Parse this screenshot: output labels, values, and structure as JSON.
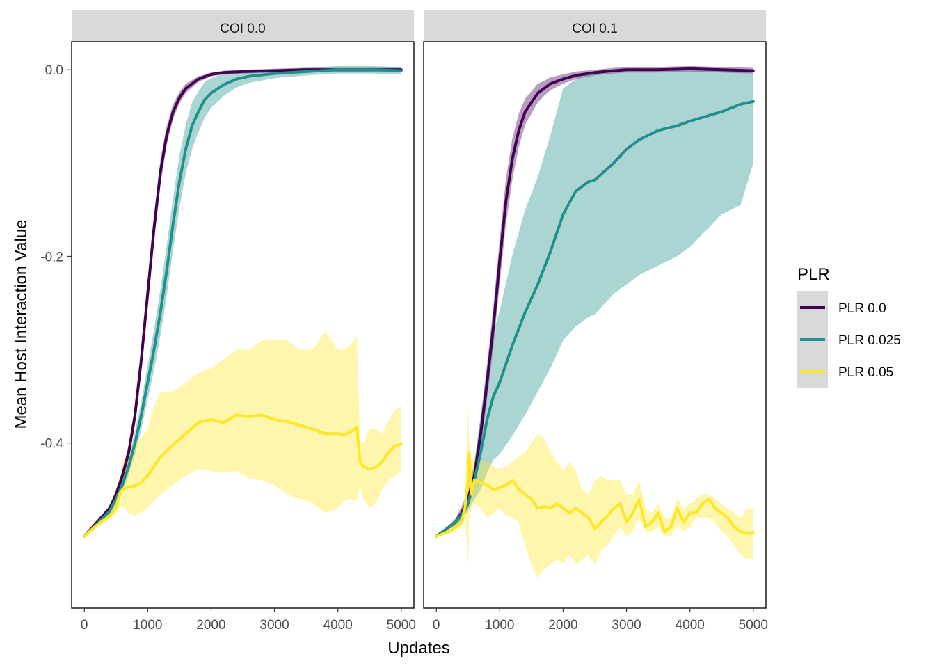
{
  "chart_data": {
    "type": "line",
    "xlabel": "Updates",
    "ylabel": "Mean Host Interaction Value",
    "xlim": [
      -200,
      5200
    ],
    "ylim": [
      -0.577,
      0.03
    ],
    "x_ticks": [
      0,
      1000,
      2000,
      3000,
      4000,
      5000
    ],
    "x_tick_labels": [
      "0",
      "1000",
      "2000",
      "3000",
      "4000",
      "5000"
    ],
    "y_ticks": [
      0.0,
      -0.2,
      -0.4
    ],
    "y_tick_labels": [
      "0.0",
      "-0.2",
      "-0.4"
    ],
    "legend": {
      "title": "PLR",
      "position": "right",
      "entries": [
        "PLR 0.0",
        "PLR 0.025",
        "PLR 0.05"
      ]
    },
    "colors": {
      "PLR 0.0": "#440154",
      "PLR 0.025": "#21908C",
      "PLR 0.05": "#FDE725"
    },
    "grid": false,
    "panels": [
      {
        "strip": "COI 0.0",
        "series": [
          {
            "name": "PLR 0.0",
            "x": [
              0,
              200,
              400,
              500,
              600,
              700,
              800,
              900,
              1000,
              1100,
              1200,
              1300,
              1400,
              1500,
              1600,
              1700,
              1800,
              2000,
              2200,
              2500,
              3000,
              3500,
              4000,
              4500,
              5000
            ],
            "y": [
              -0.5,
              -0.485,
              -0.47,
              -0.455,
              -0.435,
              -0.41,
              -0.37,
              -0.31,
              -0.24,
              -0.17,
              -0.11,
              -0.07,
              -0.045,
              -0.03,
              -0.02,
              -0.015,
              -0.01,
              -0.005,
              -0.003,
              -0.002,
              -0.001,
              0.0,
              0.0,
              0.0,
              0.0
            ],
            "lower": [
              -0.5,
              -0.487,
              -0.473,
              -0.459,
              -0.441,
              -0.418,
              -0.38,
              -0.322,
              -0.254,
              -0.184,
              -0.124,
              -0.08,
              -0.053,
              -0.036,
              -0.025,
              -0.019,
              -0.013,
              -0.007,
              -0.005,
              -0.004,
              -0.003,
              -0.002,
              -0.002,
              -0.002,
              -0.002
            ],
            "upper": [
              -0.5,
              -0.483,
              -0.467,
              -0.451,
              -0.429,
              -0.402,
              -0.36,
              -0.298,
              -0.226,
              -0.156,
              -0.096,
              -0.06,
              -0.037,
              -0.024,
              -0.015,
              -0.011,
              -0.007,
              -0.003,
              -0.001,
              0.0,
              0.001,
              0.002,
              0.002,
              0.002,
              0.002
            ]
          },
          {
            "name": "PLR 0.025",
            "x": [
              0,
              200,
              400,
              500,
              600,
              700,
              800,
              900,
              1000,
              1100,
              1200,
              1300,
              1400,
              1500,
              1600,
              1700,
              1800,
              1900,
              2000,
              2200,
              2400,
              2600,
              3000,
              3500,
              4000,
              4500,
              5000
            ],
            "y": [
              -0.5,
              -0.487,
              -0.473,
              -0.46,
              -0.445,
              -0.425,
              -0.4,
              -0.37,
              -0.335,
              -0.3,
              -0.26,
              -0.215,
              -0.165,
              -0.12,
              -0.085,
              -0.06,
              -0.045,
              -0.032,
              -0.025,
              -0.016,
              -0.01,
              -0.007,
              -0.004,
              -0.002,
              0.0,
              0.0,
              -0.001
            ],
            "lower": [
              -0.5,
              -0.489,
              -0.477,
              -0.466,
              -0.452,
              -0.434,
              -0.412,
              -0.385,
              -0.353,
              -0.322,
              -0.285,
              -0.242,
              -0.193,
              -0.148,
              -0.111,
              -0.085,
              -0.067,
              -0.051,
              -0.041,
              -0.028,
              -0.019,
              -0.014,
              -0.009,
              -0.006,
              -0.004,
              -0.004,
              -0.005
            ],
            "upper": [
              -0.5,
              -0.485,
              -0.469,
              -0.454,
              -0.438,
              -0.416,
              -0.388,
              -0.355,
              -0.317,
              -0.278,
              -0.235,
              -0.188,
              -0.137,
              -0.092,
              -0.059,
              -0.035,
              -0.023,
              -0.013,
              -0.009,
              -0.004,
              -0.001,
              0.0,
              0.001,
              0.002,
              0.004,
              0.004,
              0.003
            ]
          },
          {
            "name": "PLR 0.05",
            "x": [
              0,
              200,
              400,
              500,
              550,
              600,
              700,
              800,
              900,
              1000,
              1100,
              1200,
              1400,
              1600,
              1800,
              2000,
              2200,
              2400,
              2600,
              2800,
              3000,
              3200,
              3400,
              3600,
              3800,
              4000,
              4100,
              4200,
              4300,
              4350,
              4400,
              4500,
              4600,
              4700,
              4800,
              4900,
              5000
            ],
            "y": [
              -0.5,
              -0.488,
              -0.478,
              -0.47,
              -0.455,
              -0.45,
              -0.447,
              -0.446,
              -0.442,
              -0.435,
              -0.425,
              -0.415,
              -0.402,
              -0.39,
              -0.378,
              -0.375,
              -0.378,
              -0.37,
              -0.372,
              -0.37,
              -0.375,
              -0.377,
              -0.381,
              -0.385,
              -0.39,
              -0.39,
              -0.391,
              -0.388,
              -0.383,
              -0.42,
              -0.425,
              -0.428,
              -0.426,
              -0.42,
              -0.41,
              -0.403,
              -0.401
            ],
            "lower": [
              -0.5,
              -0.49,
              -0.482,
              -0.476,
              -0.47,
              -0.468,
              -0.475,
              -0.478,
              -0.474,
              -0.47,
              -0.462,
              -0.455,
              -0.445,
              -0.435,
              -0.428,
              -0.43,
              -0.432,
              -0.43,
              -0.438,
              -0.44,
              -0.445,
              -0.455,
              -0.46,
              -0.465,
              -0.475,
              -0.47,
              -0.462,
              -0.46,
              -0.462,
              -0.445,
              -0.46,
              -0.47,
              -0.465,
              -0.45,
              -0.44,
              -0.435,
              -0.43
            ],
            "upper": [
              -0.5,
              -0.486,
              -0.474,
              -0.464,
              -0.44,
              -0.42,
              -0.405,
              -0.4,
              -0.395,
              -0.385,
              -0.36,
              -0.345,
              -0.345,
              -0.335,
              -0.325,
              -0.32,
              -0.31,
              -0.3,
              -0.3,
              -0.29,
              -0.29,
              -0.29,
              -0.3,
              -0.3,
              -0.28,
              -0.3,
              -0.3,
              -0.295,
              -0.285,
              -0.4,
              -0.4,
              -0.385,
              -0.385,
              -0.39,
              -0.375,
              -0.365,
              -0.36
            ]
          }
        ]
      },
      {
        "strip": "COI 0.1",
        "series": [
          {
            "name": "PLR 0.0",
            "x": [
              0,
              200,
              300,
              400,
              500,
              600,
              700,
              800,
              900,
              1000,
              1100,
              1200,
              1300,
              1400,
              1500,
              1600,
              1700,
              1800,
              2000,
              2200,
              2500,
              2800,
              3000,
              3500,
              4000,
              4500,
              5000
            ],
            "y": [
              -0.5,
              -0.49,
              -0.485,
              -0.475,
              -0.46,
              -0.435,
              -0.39,
              -0.335,
              -0.275,
              -0.205,
              -0.14,
              -0.095,
              -0.065,
              -0.045,
              -0.035,
              -0.025,
              -0.02,
              -0.015,
              -0.01,
              -0.006,
              -0.003,
              -0.001,
              0.0,
              0.0,
              0.001,
              0.0,
              -0.001
            ],
            "lower": [
              -0.5,
              -0.492,
              -0.489,
              -0.482,
              -0.47,
              -0.448,
              -0.406,
              -0.354,
              -0.297,
              -0.229,
              -0.164,
              -0.117,
              -0.083,
              -0.059,
              -0.047,
              -0.035,
              -0.028,
              -0.022,
              -0.015,
              -0.01,
              -0.006,
              -0.004,
              -0.003,
              -0.003,
              -0.002,
              -0.003,
              -0.004
            ],
            "upper": [
              -0.5,
              -0.488,
              -0.481,
              -0.468,
              -0.45,
              -0.422,
              -0.374,
              -0.316,
              -0.253,
              -0.181,
              -0.116,
              -0.073,
              -0.047,
              -0.031,
              -0.023,
              -0.015,
              -0.012,
              -0.008,
              -0.005,
              -0.002,
              0.0,
              0.002,
              0.003,
              0.003,
              0.004,
              0.003,
              0.002
            ]
          },
          {
            "name": "PLR 0.025",
            "x": [
              0,
              200,
              300,
              400,
              500,
              600,
              700,
              800,
              900,
              1000,
              1200,
              1400,
              1600,
              1800,
              2000,
              2200,
              2400,
              2500,
              2800,
              3000,
              3200,
              3500,
              3800,
              4000,
              4500,
              4800,
              5000
            ],
            "y": [
              -0.5,
              -0.49,
              -0.485,
              -0.477,
              -0.465,
              -0.44,
              -0.41,
              -0.375,
              -0.35,
              -0.335,
              -0.295,
              -0.26,
              -0.23,
              -0.195,
              -0.155,
              -0.13,
              -0.12,
              -0.118,
              -0.1,
              -0.085,
              -0.075,
              -0.065,
              -0.06,
              -0.055,
              -0.045,
              -0.037,
              -0.034
            ],
            "lower": [
              -0.5,
              -0.492,
              -0.488,
              -0.482,
              -0.473,
              -0.46,
              -0.45,
              -0.432,
              -0.418,
              -0.412,
              -0.392,
              -0.37,
              -0.345,
              -0.32,
              -0.29,
              -0.275,
              -0.265,
              -0.262,
              -0.24,
              -0.23,
              -0.22,
              -0.21,
              -0.2,
              -0.19,
              -0.155,
              -0.145,
              -0.1
            ],
            "upper": [
              -0.5,
              -0.488,
              -0.482,
              -0.472,
              -0.457,
              -0.42,
              -0.37,
              -0.318,
              -0.282,
              -0.258,
              -0.198,
              -0.15,
              -0.115,
              -0.07,
              -0.02,
              -0.01,
              -0.005,
              -0.005,
              -0.003,
              -0.003,
              -0.002,
              -0.002,
              -0.001,
              -0.001,
              -0.001,
              -0.001,
              -0.001
            ]
          },
          {
            "name": "PLR 0.05",
            "x": [
              0,
              200,
              300,
              400,
              450,
              500,
              520,
              550,
              600,
              700,
              800,
              900,
              1000,
              1100,
              1200,
              1300,
              1400,
              1500,
              1600,
              1700,
              1800,
              1900,
              2000,
              2100,
              2200,
              2300,
              2400,
              2500,
              2600,
              2700,
              2800,
              2900,
              3000,
              3100,
              3200,
              3300,
              3400,
              3500,
              3600,
              3700,
              3800,
              3900,
              4000,
              4100,
              4200,
              4300,
              4400,
              4500,
              4600,
              4700,
              4800,
              4900,
              5000
            ],
            "y": [
              -0.5,
              -0.495,
              -0.49,
              -0.485,
              -0.47,
              -0.44,
              -0.41,
              -0.455,
              -0.44,
              -0.442,
              -0.445,
              -0.45,
              -0.448,
              -0.445,
              -0.44,
              -0.45,
              -0.455,
              -0.46,
              -0.47,
              -0.468,
              -0.47,
              -0.465,
              -0.47,
              -0.475,
              -0.47,
              -0.475,
              -0.48,
              -0.492,
              -0.485,
              -0.478,
              -0.47,
              -0.465,
              -0.485,
              -0.475,
              -0.46,
              -0.49,
              -0.485,
              -0.475,
              -0.495,
              -0.49,
              -0.47,
              -0.485,
              -0.475,
              -0.475,
              -0.465,
              -0.46,
              -0.47,
              -0.475,
              -0.48,
              -0.49,
              -0.495,
              -0.497,
              -0.496
            ],
            "lower": [
              -0.5,
              -0.497,
              -0.495,
              -0.49,
              -0.48,
              -0.53,
              -0.48,
              -0.47,
              -0.465,
              -0.47,
              -0.48,
              -0.475,
              -0.47,
              -0.478,
              -0.48,
              -0.485,
              -0.51,
              -0.53,
              -0.545,
              -0.535,
              -0.53,
              -0.525,
              -0.53,
              -0.52,
              -0.53,
              -0.525,
              -0.52,
              -0.53,
              -0.515,
              -0.51,
              -0.5,
              -0.49,
              -0.5,
              -0.495,
              -0.48,
              -0.495,
              -0.495,
              -0.49,
              -0.5,
              -0.5,
              -0.49,
              -0.495,
              -0.49,
              -0.48,
              -0.48,
              -0.48,
              -0.485,
              -0.495,
              -0.5,
              -0.51,
              -0.52,
              -0.525,
              -0.525
            ],
            "upper": [
              -0.5,
              -0.493,
              -0.485,
              -0.48,
              -0.46,
              -0.36,
              -0.4,
              -0.42,
              -0.415,
              -0.418,
              -0.42,
              -0.425,
              -0.428,
              -0.425,
              -0.42,
              -0.415,
              -0.41,
              -0.4,
              -0.39,
              -0.395,
              -0.41,
              -0.42,
              -0.43,
              -0.42,
              -0.43,
              -0.45,
              -0.455,
              -0.44,
              -0.435,
              -0.44,
              -0.44,
              -0.44,
              -0.455,
              -0.455,
              -0.44,
              -0.47,
              -0.475,
              -0.465,
              -0.48,
              -0.48,
              -0.46,
              -0.47,
              -0.465,
              -0.46,
              -0.455,
              -0.455,
              -0.46,
              -0.465,
              -0.47,
              -0.475,
              -0.48,
              -0.47,
              -0.47
            ]
          }
        ]
      }
    ]
  }
}
